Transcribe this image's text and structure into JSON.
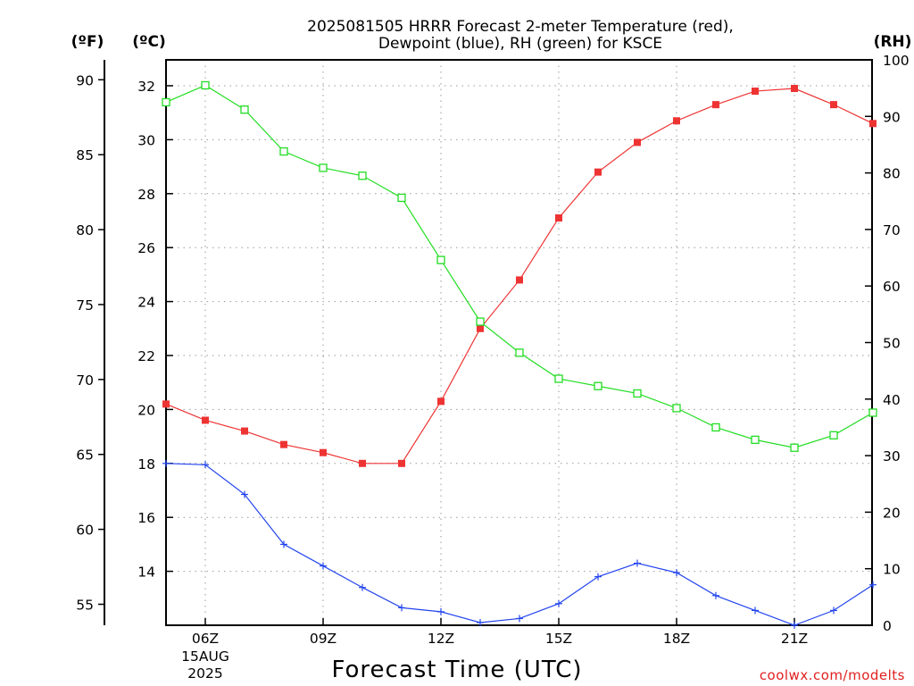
{
  "chart_data": {
    "type": "line",
    "title_lines": [
      "2025081505 HRRR Forecast 2-meter Temperature (red),",
      "Dewpoint (blue), RH (green) for KSCE"
    ],
    "xlabel": "Forecast Time (UTC)",
    "x_hours": [
      5,
      6,
      7,
      8,
      9,
      10,
      11,
      12,
      13,
      14,
      15,
      16,
      17,
      18,
      19,
      20,
      21,
      22,
      23
    ],
    "x_ticks": [
      {
        "hour": 6,
        "label": "06Z",
        "sub": [
          "15AUG",
          "2025"
        ]
      },
      {
        "hour": 9,
        "label": "09Z"
      },
      {
        "hour": 12,
        "label": "12Z"
      },
      {
        "hour": 15,
        "label": "15Z"
      },
      {
        "hour": 18,
        "label": "18Z"
      },
      {
        "hour": 21,
        "label": "21Z"
      }
    ],
    "xlim": [
      5,
      23
    ],
    "left_c_axis": {
      "unit": "(ºC)",
      "ylim": [
        12,
        33
      ],
      "ticks": [
        14,
        16,
        18,
        20,
        22,
        24,
        26,
        28,
        30,
        32
      ]
    },
    "left_f_axis": {
      "unit": "(ºF)",
      "ticks": [
        55,
        60,
        65,
        70,
        75,
        80,
        85,
        90
      ]
    },
    "right_axis": {
      "unit": "(RH)",
      "ylim": [
        0,
        100
      ],
      "ticks": [
        0,
        10,
        20,
        30,
        40,
        50,
        60,
        70,
        80,
        90,
        100
      ]
    },
    "grid": true,
    "series": [
      {
        "name": "Temperature",
        "axis": "C",
        "color": "#ee3333",
        "marker": "filled-square",
        "values": [
          20.2,
          19.6,
          19.2,
          18.7,
          18.4,
          18.0,
          18.0,
          20.3,
          23.0,
          24.8,
          27.1,
          28.8,
          29.9,
          30.7,
          31.3,
          31.8,
          31.9,
          31.3,
          30.6
        ]
      },
      {
        "name": "Dewpoint",
        "axis": "C",
        "color": "#2244ee",
        "marker": "plus",
        "values": [
          18.0,
          17.95,
          16.85,
          15.0,
          14.2,
          13.4,
          12.65,
          12.5,
          12.1,
          12.25,
          12.8,
          13.8,
          14.3,
          13.95,
          13.1,
          12.55,
          12.0,
          12.55,
          13.5
        ]
      },
      {
        "name": "RH",
        "axis": "RH",
        "color": "#22dd22",
        "marker": "open-square",
        "values": [
          92.5,
          95.5,
          91.2,
          83.8,
          80.9,
          79.5,
          75.6,
          64.6,
          53.7,
          48.2,
          43.6,
          42.3,
          41.0,
          38.4,
          35.0,
          32.8,
          31.4,
          33.6,
          37.6
        ]
      }
    ],
    "credit": "coolwx.com/modelts"
  }
}
